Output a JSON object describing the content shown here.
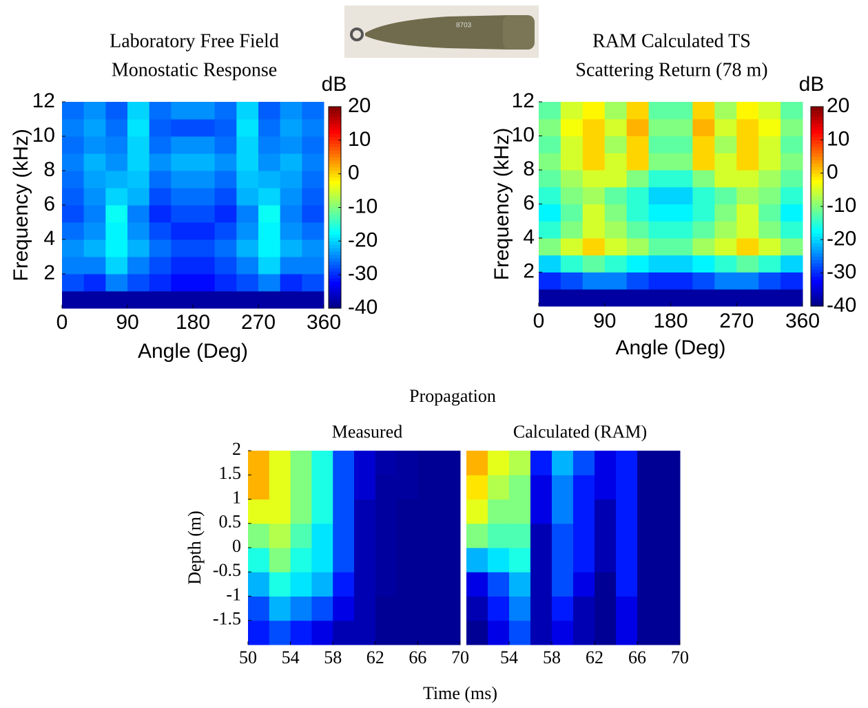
{
  "photo_label": "8703",
  "chart_data": [
    {
      "type": "heatmap",
      "title": [
        "Laboratory Free Field",
        "Monostatic Response"
      ],
      "xlabel": "Angle (Deg)",
      "ylabel": "Frequency (kHz)",
      "xlim": [
        0,
        360
      ],
      "xticks": [
        0,
        90,
        180,
        270,
        360
      ],
      "ylim": [
        0,
        12
      ],
      "yticks": [
        2,
        4,
        6,
        8,
        10,
        12
      ],
      "xbins": [
        0,
        30,
        60,
        90,
        120,
        150,
        180,
        210,
        240,
        270,
        300,
        330,
        360
      ],
      "ybins": [
        0,
        1,
        2,
        3,
        4,
        5,
        6,
        7,
        8,
        9,
        10,
        11,
        12
      ],
      "colorbar": {
        "label": "dB",
        "lim": [
          -40,
          20
        ],
        "ticks": [
          20,
          10,
          0,
          -10,
          -20,
          -30,
          -40
        ],
        "colormap": "jet"
      },
      "z": [
        [
          -38,
          -38,
          -38,
          -38,
          -38,
          -38,
          -38,
          -38,
          -38,
          -38,
          -38,
          -38
        ],
        [
          -28,
          -30,
          -25,
          -28,
          -30,
          -32,
          -32,
          -30,
          -28,
          -25,
          -30,
          -28
        ],
        [
          -25,
          -25,
          -20,
          -25,
          -28,
          -30,
          -30,
          -28,
          -25,
          -20,
          -25,
          -25
        ],
        [
          -24,
          -22,
          -18,
          -22,
          -26,
          -28,
          -28,
          -26,
          -22,
          -18,
          -22,
          -24
        ],
        [
          -26,
          -24,
          -18,
          -24,
          -28,
          -30,
          -30,
          -28,
          -24,
          -18,
          -24,
          -26
        ],
        [
          -28,
          -25,
          -17,
          -25,
          -30,
          -28,
          -28,
          -30,
          -25,
          -17,
          -25,
          -28
        ],
        [
          -27,
          -24,
          -20,
          -22,
          -28,
          -26,
          -26,
          -28,
          -22,
          -20,
          -24,
          -27
        ],
        [
          -26,
          -23,
          -22,
          -21,
          -26,
          -24,
          -24,
          -26,
          -21,
          -22,
          -23,
          -26
        ],
        [
          -25,
          -22,
          -24,
          -20,
          -24,
          -22,
          -22,
          -24,
          -20,
          -24,
          -22,
          -25
        ],
        [
          -26,
          -24,
          -25,
          -20,
          -26,
          -24,
          -24,
          -26,
          -20,
          -25,
          -24,
          -26
        ],
        [
          -25,
          -23,
          -26,
          -19,
          -27,
          -28,
          -28,
          -27,
          -19,
          -26,
          -23,
          -25
        ],
        [
          -26,
          -24,
          -27,
          -20,
          -26,
          -24,
          -24,
          -26,
          -20,
          -27,
          -24,
          -26
        ]
      ]
    },
    {
      "type": "heatmap",
      "title": [
        "RAM Calculated TS",
        "Scattering Return (78 m)"
      ],
      "xlabel": "Angle (Deg)",
      "ylabel": "Frequency (kHz)",
      "xlim": [
        0,
        360
      ],
      "xticks": [
        0,
        90,
        180,
        270,
        360
      ],
      "ylim": [
        0,
        12
      ],
      "yticks": [
        2,
        4,
        6,
        8,
        10,
        12
      ],
      "xbins": [
        0,
        30,
        60,
        90,
        120,
        150,
        180,
        210,
        240,
        270,
        300,
        330,
        360
      ],
      "ybins": [
        0,
        1,
        2,
        3,
        4,
        5,
        6,
        7,
        8,
        9,
        10,
        11,
        12
      ],
      "colorbar": {
        "label": "dB",
        "lim": [
          -40,
          20
        ],
        "ticks": [
          20,
          10,
          0,
          -10,
          -20,
          -30,
          -40
        ],
        "colormap": "jet"
      },
      "z": [
        [
          -38,
          -38,
          -38,
          -38,
          -38,
          -38,
          -38,
          -38,
          -38,
          -38,
          -38,
          -38
        ],
        [
          -30,
          -28,
          -25,
          -25,
          -28,
          -30,
          -30,
          -28,
          -25,
          -25,
          -28,
          -30
        ],
        [
          -20,
          -15,
          -12,
          -15,
          -18,
          -20,
          -20,
          -18,
          -15,
          -12,
          -15,
          -20
        ],
        [
          -10,
          -5,
          0,
          -5,
          -8,
          -12,
          -12,
          -8,
          -5,
          0,
          -5,
          -10
        ],
        [
          -15,
          -10,
          -5,
          -8,
          -12,
          -15,
          -15,
          -12,
          -8,
          -5,
          -10,
          -15
        ],
        [
          -18,
          -12,
          -5,
          -10,
          -15,
          -18,
          -18,
          -15,
          -10,
          -5,
          -12,
          -18
        ],
        [
          -15,
          -10,
          -8,
          -12,
          -15,
          -20,
          -20,
          -15,
          -12,
          -8,
          -10,
          -15
        ],
        [
          -12,
          -8,
          -5,
          -5,
          -10,
          -15,
          -15,
          -10,
          -5,
          -5,
          -8,
          -12
        ],
        [
          -10,
          -5,
          0,
          -5,
          0,
          -10,
          -10,
          0,
          -5,
          0,
          -5,
          -10
        ],
        [
          -12,
          -5,
          0,
          -8,
          0,
          -12,
          -12,
          0,
          -8,
          0,
          -5,
          -12
        ],
        [
          -10,
          -3,
          0,
          -5,
          2,
          -10,
          -10,
          2,
          -5,
          0,
          -3,
          -10
        ],
        [
          -12,
          -5,
          -2,
          -8,
          0,
          -12,
          -12,
          0,
          -8,
          -2,
          -5,
          -12
        ]
      ]
    },
    {
      "type": "heatmap",
      "supertitle": "Propagation",
      "title": [
        "Measured"
      ],
      "xlabel": "Time (ms)",
      "ylabel": "Depth (m)",
      "xlim": [
        50,
        70
      ],
      "xticks": [
        50,
        54,
        58,
        62,
        66,
        70
      ],
      "ylim": [
        -2,
        2
      ],
      "yticks": [
        2,
        1.5,
        1,
        0.5,
        0,
        -0.5,
        -1,
        -1.5
      ],
      "xbins": [
        50,
        52,
        54,
        56,
        58,
        60,
        62,
        64,
        66,
        68,
        70
      ],
      "ybins": [
        -2,
        -1.5,
        -1,
        -0.5,
        0,
        0.5,
        1,
        1.5,
        2
      ],
      "clim": [
        0,
        1
      ],
      "z": [
        [
          0.15,
          0.2,
          0.15,
          0.1,
          0.05,
          0.05,
          0.02,
          0.02,
          0.02,
          0.02
        ],
        [
          0.2,
          0.3,
          0.25,
          0.2,
          0.1,
          0.05,
          0.02,
          0.02,
          0.02,
          0.02
        ],
        [
          0.3,
          0.4,
          0.35,
          0.3,
          0.15,
          0.05,
          0.03,
          0.02,
          0.02,
          0.02
        ],
        [
          0.4,
          0.5,
          0.4,
          0.35,
          0.2,
          0.05,
          0.03,
          0.02,
          0.02,
          0.02
        ],
        [
          0.5,
          0.55,
          0.45,
          0.35,
          0.2,
          0.05,
          0.03,
          0.02,
          0.02,
          0.02
        ],
        [
          0.6,
          0.6,
          0.5,
          0.4,
          0.2,
          0.05,
          0.03,
          0.02,
          0.02,
          0.02
        ],
        [
          0.7,
          0.6,
          0.5,
          0.4,
          0.2,
          0.08,
          0.03,
          0.03,
          0.02,
          0.02
        ],
        [
          0.7,
          0.6,
          0.5,
          0.4,
          0.2,
          0.08,
          0.04,
          0.03,
          0.02,
          0.02
        ]
      ]
    },
    {
      "type": "heatmap",
      "title": [
        "Calculated (RAM)"
      ],
      "xlim": [
        50,
        70
      ],
      "xticks": [
        54,
        58,
        62,
        66,
        70
      ],
      "ylim": [
        -2,
        2
      ],
      "xbins": [
        50,
        52,
        54,
        56,
        58,
        60,
        62,
        64,
        66,
        68,
        70
      ],
      "ybins": [
        -2,
        -1.5,
        -1,
        -0.5,
        0,
        0.5,
        1,
        1.5,
        2
      ],
      "clim": [
        0,
        1
      ],
      "z": [
        [
          0.02,
          0.1,
          0.2,
          0.05,
          0.1,
          0.05,
          0.02,
          0.1,
          0.02,
          0.02
        ],
        [
          0.05,
          0.15,
          0.25,
          0.05,
          0.15,
          0.05,
          0.02,
          0.1,
          0.02,
          0.02
        ],
        [
          0.1,
          0.2,
          0.3,
          0.05,
          0.2,
          0.1,
          0.02,
          0.15,
          0.02,
          0.02
        ],
        [
          0.3,
          0.35,
          0.4,
          0.05,
          0.2,
          0.15,
          0.05,
          0.15,
          0.02,
          0.02
        ],
        [
          0.5,
          0.45,
          0.45,
          0.05,
          0.2,
          0.15,
          0.05,
          0.15,
          0.02,
          0.02
        ],
        [
          0.6,
          0.5,
          0.5,
          0.1,
          0.25,
          0.15,
          0.05,
          0.15,
          0.02,
          0.02
        ],
        [
          0.65,
          0.55,
          0.5,
          0.1,
          0.25,
          0.15,
          0.1,
          0.15,
          0.02,
          0.02
        ],
        [
          0.7,
          0.6,
          0.55,
          0.15,
          0.3,
          0.2,
          0.1,
          0.15,
          0.02,
          0.02
        ]
      ]
    }
  ]
}
